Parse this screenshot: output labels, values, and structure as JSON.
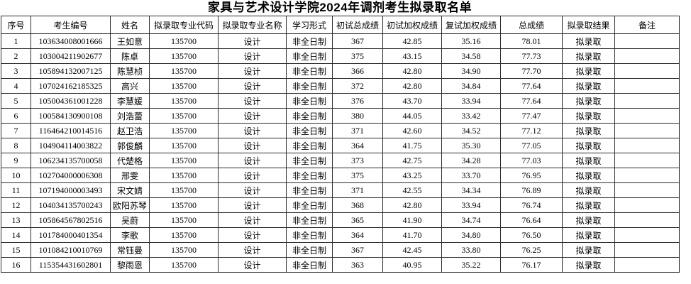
{
  "page": {
    "title": "家具与艺术设计学院2024年调剂考生拟录取名单"
  },
  "table": {
    "headers": [
      "序号",
      "考生编号",
      "姓名",
      "拟录取专业代码",
      "拟录取专业名称",
      "学习形式",
      "初试总成绩",
      "初试加权成绩",
      "复试加权成绩",
      "总成绩",
      "拟录取结果",
      "备注"
    ],
    "rows": [
      [
        "1",
        "103634008001666",
        "王如意",
        "135700",
        "设计",
        "非全日制",
        "367",
        "42.85",
        "35.16",
        "78.01",
        "拟录取",
        ""
      ],
      [
        "2",
        "103004211902677",
        "陈卓",
        "135700",
        "设计",
        "非全日制",
        "375",
        "43.15",
        "34.58",
        "77.73",
        "拟录取",
        ""
      ],
      [
        "3",
        "105894132007125",
        "陈慧桢",
        "135700",
        "设计",
        "非全日制",
        "366",
        "42.80",
        "34.90",
        "77.70",
        "拟录取",
        ""
      ],
      [
        "4",
        "107024162185325",
        "高兴",
        "135700",
        "设计",
        "非全日制",
        "372",
        "42.80",
        "34.84",
        "77.64",
        "拟录取",
        ""
      ],
      [
        "5",
        "105004361001228",
        "李慧媛",
        "135700",
        "设计",
        "非全日制",
        "376",
        "43.70",
        "33.94",
        "77.64",
        "拟录取",
        ""
      ],
      [
        "6",
        "100584130900108",
        "刘浩蕾",
        "135700",
        "设计",
        "非全日制",
        "380",
        "44.05",
        "33.42",
        "77.47",
        "拟录取",
        ""
      ],
      [
        "7",
        "116464210014516",
        "赵卫浩",
        "135700",
        "设计",
        "非全日制",
        "371",
        "42.60",
        "34.52",
        "77.12",
        "拟录取",
        ""
      ],
      [
        "8",
        "104904114003822",
        "郭俊麟",
        "135700",
        "设计",
        "非全日制",
        "364",
        "41.75",
        "35.30",
        "77.05",
        "拟录取",
        ""
      ],
      [
        "9",
        "106234135700058",
        "代楚格",
        "135700",
        "设计",
        "非全日制",
        "373",
        "42.75",
        "34.28",
        "77.03",
        "拟录取",
        ""
      ],
      [
        "10",
        "102704000006308",
        "邢雯",
        "135700",
        "设计",
        "非全日制",
        "375",
        "43.25",
        "33.70",
        "76.95",
        "拟录取",
        ""
      ],
      [
        "11",
        "107194000003493",
        "宋文婧",
        "135700",
        "设计",
        "非全日制",
        "371",
        "42.55",
        "34.34",
        "76.89",
        "拟录取",
        ""
      ],
      [
        "12",
        "104034135700243",
        "欧阳苏琴",
        "135700",
        "设计",
        "非全日制",
        "368",
        "42.80",
        "33.94",
        "76.74",
        "拟录取",
        ""
      ],
      [
        "13",
        "105864567802516",
        "吴蔚",
        "135700",
        "设计",
        "非全日制",
        "365",
        "41.90",
        "34.74",
        "76.64",
        "拟录取",
        ""
      ],
      [
        "14",
        "101784000401354",
        "李歌",
        "135700",
        "设计",
        "非全日制",
        "364",
        "41.70",
        "34.80",
        "76.50",
        "拟录取",
        ""
      ],
      [
        "15",
        "101084210010769",
        "常钰曼",
        "135700",
        "设计",
        "非全日制",
        "367",
        "42.45",
        "33.80",
        "76.25",
        "拟录取",
        ""
      ],
      [
        "16",
        "115354431602801",
        "黎雨恩",
        "135700",
        "设计",
        "非全日制",
        "363",
        "40.95",
        "35.22",
        "76.17",
        "拟录取",
        ""
      ]
    ]
  },
  "colors": {
    "text": "#000000",
    "border": "#2b2b2b",
    "background": "#ffffff"
  }
}
